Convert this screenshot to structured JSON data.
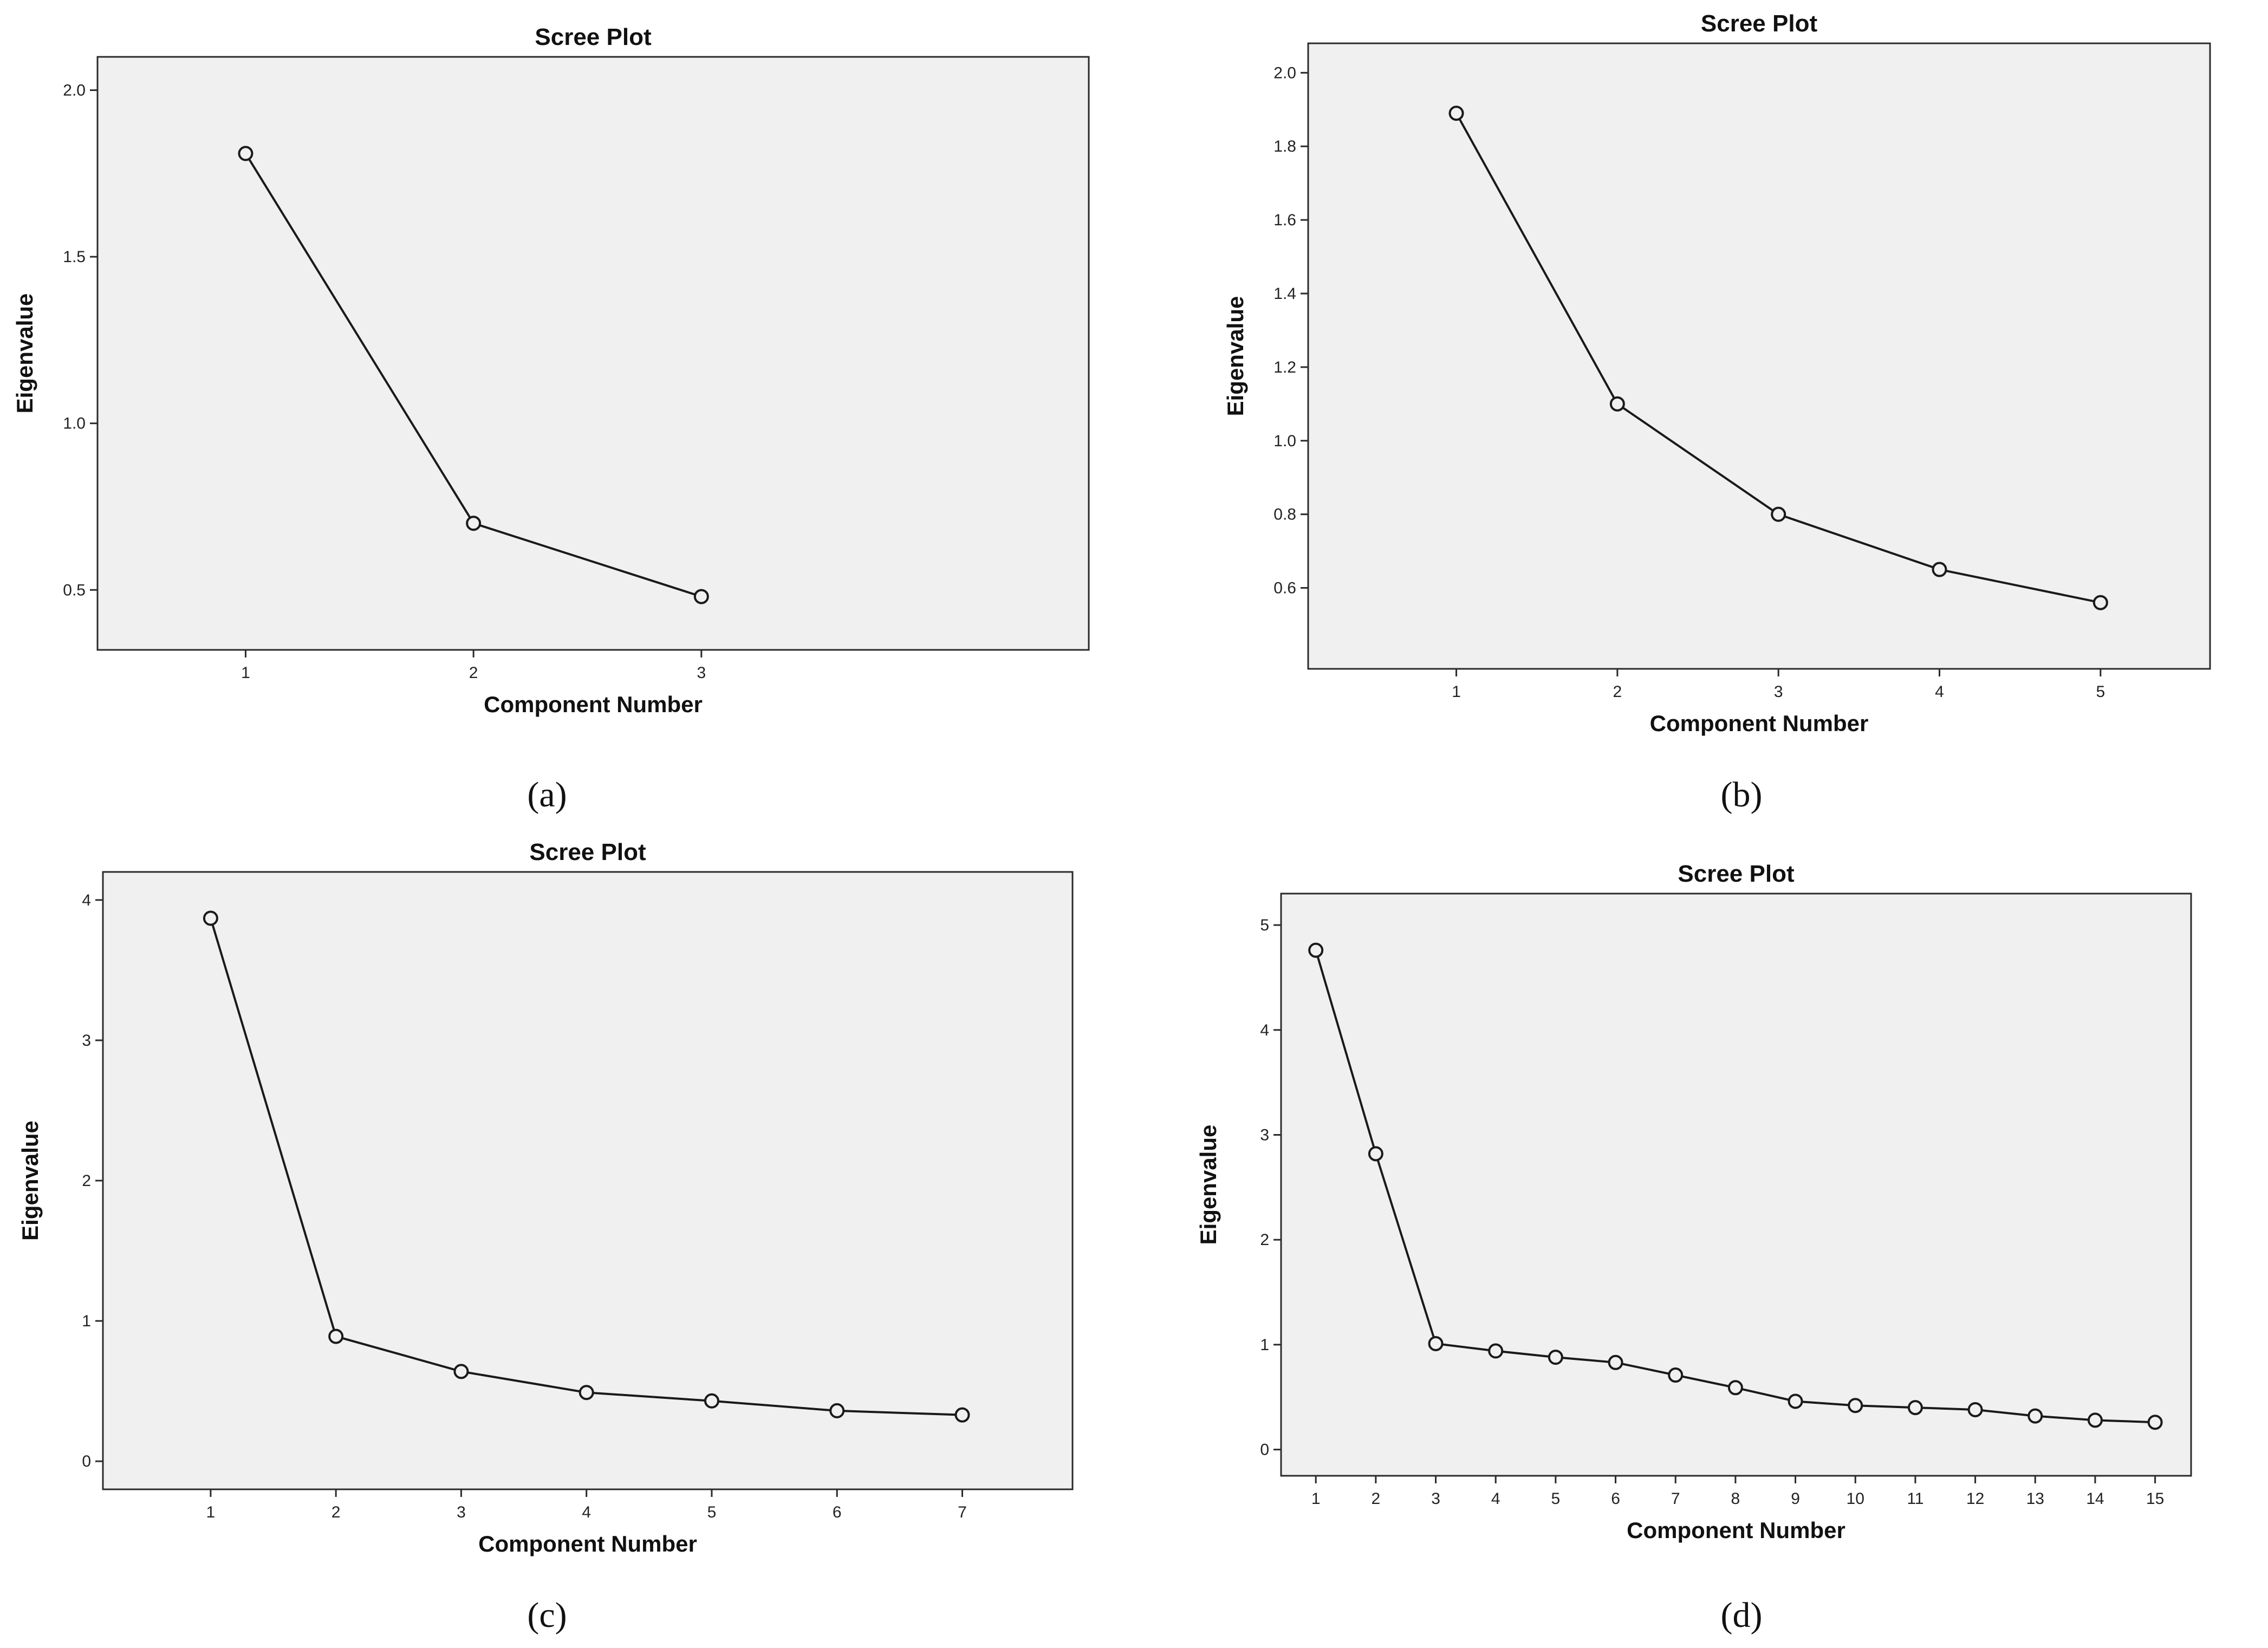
{
  "chart_data": [
    {
      "type": "line",
      "panel": "a",
      "caption": "(a)",
      "title": "Scree Plot",
      "xlabel": "Component Number",
      "ylabel": "Eigenvalue",
      "categories": [
        "1",
        "2",
        "3"
      ],
      "values": [
        1.81,
        0.7,
        0.48
      ],
      "ylim": [
        0.32,
        2.1
      ],
      "yticks": [
        "0.5",
        "1.0",
        "1.5",
        "2.0"
      ],
      "xlim": [
        0.35,
        4.7
      ],
      "grid": false
    },
    {
      "type": "line",
      "panel": "b",
      "caption": "(b)",
      "title": "Scree Plot",
      "xlabel": "Component Number",
      "ylabel": "Eigenvalue",
      "categories": [
        "1",
        "2",
        "3",
        "4",
        "5"
      ],
      "values": [
        1.89,
        1.1,
        0.8,
        0.65,
        0.56
      ],
      "ylim": [
        0.38,
        2.08
      ],
      "yticks": [
        "0.6",
        "0.8",
        "1.0",
        "1.2",
        "1.4",
        "1.6",
        "1.8",
        "2.0"
      ],
      "xlim": [
        0.08,
        5.68
      ],
      "grid": false
    },
    {
      "type": "line",
      "panel": "c",
      "caption": "(c)",
      "title": "Scree Plot",
      "xlabel": "Component Number",
      "ylabel": "Eigenvalue",
      "categories": [
        "1",
        "2",
        "3",
        "4",
        "5",
        "6",
        "7"
      ],
      "values": [
        3.87,
        0.89,
        0.64,
        0.49,
        0.43,
        0.36,
        0.33
      ],
      "ylim": [
        -0.2,
        4.2
      ],
      "yticks": [
        "0",
        "1",
        "2",
        "3",
        "4"
      ],
      "xlim": [
        0.14,
        7.88
      ],
      "grid": false
    },
    {
      "type": "line",
      "panel": "d",
      "caption": "(d)",
      "title": "Scree Plot",
      "xlabel": "Component Number",
      "ylabel": "Eigenvalue",
      "categories": [
        "1",
        "2",
        "3",
        "4",
        "5",
        "6",
        "7",
        "8",
        "9",
        "10",
        "11",
        "12",
        "13",
        "14",
        "15"
      ],
      "values": [
        4.76,
        2.82,
        1.01,
        0.94,
        0.88,
        0.83,
        0.71,
        0.59,
        0.46,
        0.42,
        0.4,
        0.38,
        0.32,
        0.28,
        0.26
      ],
      "ylim": [
        -0.25,
        5.3
      ],
      "yticks": [
        "0",
        "1",
        "2",
        "3",
        "4",
        "5"
      ],
      "xlim": [
        0.42,
        15.6
      ],
      "grid": false
    }
  ]
}
